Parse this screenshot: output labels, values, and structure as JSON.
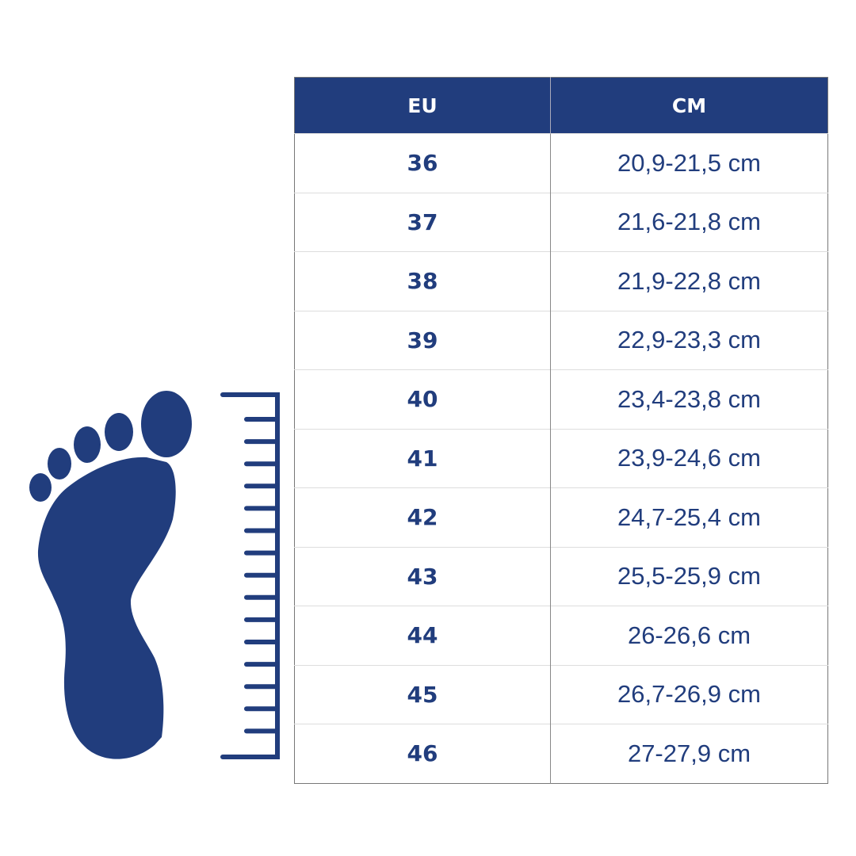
{
  "colors": {
    "primary": "#213d7d",
    "header_text": "#ffffff"
  },
  "illustration": {
    "foot_icon": "foot-icon",
    "ruler_icon": "ruler-icon"
  },
  "table": {
    "headers": [
      "EU",
      "CM"
    ],
    "rows": [
      {
        "eu": "36",
        "cm": "20,9-21,5 cm"
      },
      {
        "eu": "37",
        "cm": "21,6-21,8 cm"
      },
      {
        "eu": "38",
        "cm": "21,9-22,8 cm"
      },
      {
        "eu": "39",
        "cm": "22,9-23,3 cm"
      },
      {
        "eu": "40",
        "cm": "23,4-23,8 cm"
      },
      {
        "eu": "41",
        "cm": "23,9-24,6 cm"
      },
      {
        "eu": "42",
        "cm": "24,7-25,4 cm"
      },
      {
        "eu": "43",
        "cm": "25,5-25,9 cm"
      },
      {
        "eu": "44",
        "cm": "26-26,6 cm"
      },
      {
        "eu": "45",
        "cm": "26,7-26,9 cm"
      },
      {
        "eu": "46",
        "cm": "27-27,9 cm"
      }
    ]
  }
}
